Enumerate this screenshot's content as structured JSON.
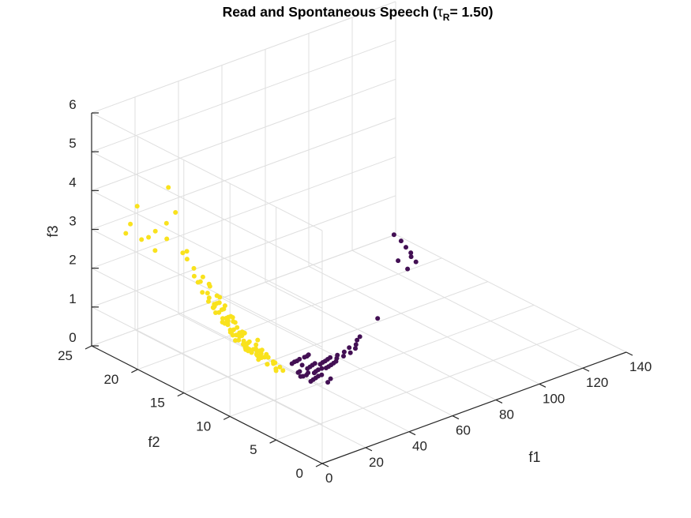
{
  "chart_data": {
    "type": "scatter",
    "projection": "3d",
    "title": {
      "text": "Read and Spontaneous Speech (",
      "tau_symbol": "τ",
      "tau_subscript": "R",
      "value_text": "= 1.50)"
    },
    "xlabel": "f1",
    "ylabel": "f2",
    "zlabel": "f3",
    "xlim": [
      0,
      140
    ],
    "ylim": [
      0,
      25
    ],
    "zlim": [
      0,
      6
    ],
    "xticks": [
      "0",
      "20",
      "40",
      "60",
      "80",
      "100",
      "120",
      "140"
    ],
    "yticks": [
      "0",
      "5",
      "10",
      "15",
      "20",
      "25"
    ],
    "zticks": [
      "0",
      "1",
      "2",
      "3",
      "4",
      "5",
      "6"
    ],
    "grid": true,
    "legend": "none",
    "colors": {
      "class_a": "#f9e21d",
      "class_b": "#431054"
    },
    "series": [
      {
        "color": "#431054",
        "points": [
          [
            24,
            8,
            0.78
          ],
          [
            25,
            8.5,
            0.8
          ],
          [
            26,
            8.2,
            0.72
          ],
          [
            27,
            8.8,
            0.75
          ],
          [
            28,
            8.3,
            0.7
          ],
          [
            29,
            9.0,
            0.85
          ],
          [
            30,
            8.6,
            0.68
          ],
          [
            31,
            8.9,
            0.73
          ],
          [
            32,
            8.4,
            0.66
          ],
          [
            33,
            9.1,
            0.71
          ],
          [
            34,
            8.7,
            0.62
          ],
          [
            35,
            9.3,
            0.69
          ],
          [
            36,
            8.9,
            0.6
          ],
          [
            37,
            9.5,
            0.67
          ],
          [
            26,
            9.4,
            0.9
          ],
          [
            28,
            9.6,
            0.88
          ],
          [
            30,
            9.8,
            0.84
          ],
          [
            32,
            10.0,
            0.82
          ],
          [
            27,
            7.6,
            0.64
          ],
          [
            29,
            7.8,
            0.62
          ],
          [
            31,
            8.0,
            0.6
          ],
          [
            33,
            8.2,
            0.58
          ],
          [
            35,
            8.3,
            0.56
          ],
          [
            38,
            9.0,
            0.58
          ],
          [
            39,
            9.4,
            0.62
          ],
          [
            40,
            9.0,
            0.55
          ],
          [
            41,
            9.6,
            0.6
          ],
          [
            42,
            9.2,
            0.52
          ],
          [
            43,
            9.8,
            0.57
          ],
          [
            44,
            9.4,
            0.5
          ],
          [
            45,
            10.0,
            0.55
          ],
          [
            46,
            9.6,
            0.48
          ],
          [
            47,
            10.2,
            0.53
          ],
          [
            48,
            9.8,
            0.46
          ],
          [
            50,
            10.2,
            0.45
          ],
          [
            52,
            10.6,
            0.44
          ],
          [
            54,
            10.4,
            0.4
          ],
          [
            56,
            10.8,
            0.42
          ],
          [
            58,
            10.6,
            0.38
          ],
          [
            60,
            11.2,
            0.4
          ],
          [
            62,
            11.0,
            0.36
          ],
          [
            64,
            11.4,
            0.37
          ],
          [
            67,
            12.0,
            0.35
          ],
          [
            70,
            12.4,
            0.33
          ],
          [
            36,
            10.4,
            0.74
          ],
          [
            38,
            10.6,
            0.7
          ],
          [
            40,
            10.9,
            0.66
          ],
          [
            34,
            7.4,
            0.5
          ],
          [
            37,
            7.8,
            0.48
          ],
          [
            85,
            14.0,
            0.3
          ],
          [
            120,
            19.0,
            0.25
          ],
          [
            122,
            20.5,
            0.24
          ],
          [
            126,
            19.5,
            0.25
          ],
          [
            128,
            20.5,
            0.22
          ],
          [
            130,
            21.0,
            0.22
          ],
          [
            132,
            22.0,
            0.2
          ],
          [
            134,
            23.0,
            0.2
          ],
          [
            135,
            24.0,
            0.22
          ]
        ]
      },
      {
        "color": "#f9e21d",
        "points": [
          [
            12,
            10,
            1.6
          ],
          [
            14,
            10.5,
            1.4
          ],
          [
            15,
            11,
            1.3
          ],
          [
            16,
            10,
            1.2
          ],
          [
            17,
            11,
            1.5
          ],
          [
            18,
            10.5,
            1.1
          ],
          [
            19,
            11.5,
            1.0
          ],
          [
            20,
            10,
            0.95
          ],
          [
            21,
            11,
            1.05
          ],
          [
            22,
            10.5,
            0.9
          ],
          [
            13,
            11.5,
            1.7
          ],
          [
            14,
            12,
            1.55
          ],
          [
            15,
            12.5,
            1.45
          ],
          [
            16,
            11.8,
            1.35
          ],
          [
            17,
            12.2,
            1.25
          ],
          [
            18,
            12.8,
            1.15
          ],
          [
            19,
            12.4,
            1.05
          ],
          [
            20,
            13,
            0.95
          ],
          [
            21,
            12.6,
            0.9
          ],
          [
            22,
            13.2,
            0.85
          ],
          [
            11,
            11,
            1.8
          ],
          [
            12,
            11.5,
            1.75
          ],
          [
            13,
            12.5,
            1.85
          ],
          [
            12,
            13,
            1.95
          ],
          [
            11,
            12.5,
            2.05
          ],
          [
            10,
            12,
            2.0
          ],
          [
            14,
            13.5,
            1.75
          ],
          [
            15,
            13.8,
            1.65
          ],
          [
            16,
            14,
            1.55
          ],
          [
            17,
            13.6,
            1.45
          ],
          [
            18,
            14.2,
            1.35
          ],
          [
            19,
            13.8,
            1.25
          ],
          [
            20,
            14.4,
            1.15
          ],
          [
            21,
            14,
            1.05
          ],
          [
            22,
            14.6,
            0.95
          ],
          [
            23,
            13.4,
            0.85
          ],
          [
            24,
            14,
            0.8
          ],
          [
            23,
            12,
            0.8
          ],
          [
            24,
            12.6,
            0.75
          ],
          [
            25,
            13,
            0.72
          ],
          [
            13,
            14.5,
            2.1
          ],
          [
            14,
            15,
            2.0
          ],
          [
            12,
            14,
            2.2
          ],
          [
            15,
            15.2,
            1.9
          ],
          [
            16,
            15.6,
            1.8
          ],
          [
            17,
            15.2,
            1.7
          ],
          [
            18,
            15.8,
            1.6
          ],
          [
            10,
            13.5,
            2.3
          ],
          [
            11,
            14,
            2.4
          ],
          [
            12,
            15,
            2.5
          ],
          [
            9,
            13,
            2.2
          ],
          [
            10,
            10.5,
            1.5
          ],
          [
            11,
            9.5,
            1.3
          ],
          [
            13,
            9,
            1.2
          ],
          [
            15,
            9.5,
            1.1
          ],
          [
            17,
            9,
            0.95
          ],
          [
            19,
            9.5,
            0.9
          ],
          [
            21,
            9.2,
            0.85
          ],
          [
            23,
            10,
            0.8
          ],
          [
            25,
            11,
            0.75
          ],
          [
            13,
            16,
            2.6
          ],
          [
            11,
            16.5,
            2.8
          ],
          [
            10,
            17,
            3.0
          ],
          [
            9,
            16,
            2.7
          ],
          [
            12,
            17.5,
            3.1
          ],
          [
            8,
            17,
            3.2
          ],
          [
            7,
            18.5,
            3.4
          ],
          [
            9,
            19,
            3.7
          ],
          [
            6,
            19.5,
            3.5
          ],
          [
            5,
            20,
            3.3
          ],
          [
            11,
            18.5,
            4.0
          ],
          [
            12,
            19.5,
            4.5
          ],
          [
            4,
            21,
            4.0
          ],
          [
            3,
            21.5,
            3.5
          ],
          [
            3,
            22,
            3.2
          ],
          [
            6,
            21,
            3.1
          ],
          [
            8,
            20,
            2.9
          ],
          [
            14,
            16.5,
            2.4
          ],
          [
            15,
            17,
            2.3
          ],
          [
            16,
            16.2,
            2.1
          ],
          [
            17,
            17,
            2.0
          ],
          [
            18,
            16.5,
            1.9
          ],
          [
            19,
            16.8,
            1.75
          ],
          [
            20,
            15.5,
            1.45
          ],
          [
            20,
            16.5,
            1.6
          ],
          [
            21,
            15.5,
            1.3
          ],
          [
            22,
            16,
            1.25
          ],
          [
            23,
            15.2,
            1.1
          ],
          [
            24,
            15.6,
            1.0
          ],
          [
            25,
            14.4,
            0.9
          ],
          [
            19,
            11,
            1.2
          ],
          [
            20,
            11.5,
            1.1
          ],
          [
            21,
            12,
            1.0
          ],
          [
            22,
            11.8,
            0.95
          ],
          [
            24,
            11.5,
            0.85
          ],
          [
            16,
            13,
            1.6
          ],
          [
            17,
            14.4,
            1.65
          ],
          [
            18,
            13.2,
            1.4
          ],
          [
            19,
            14.8,
            1.5
          ],
          [
            20,
            12.6,
            1.2
          ],
          [
            14,
            13,
            1.9
          ],
          [
            15,
            14.2,
            1.95
          ],
          [
            13,
            13.6,
            2.15
          ],
          [
            14,
            14.4,
            2.25
          ],
          [
            15,
            15.8,
            2.4
          ]
        ]
      }
    ]
  }
}
